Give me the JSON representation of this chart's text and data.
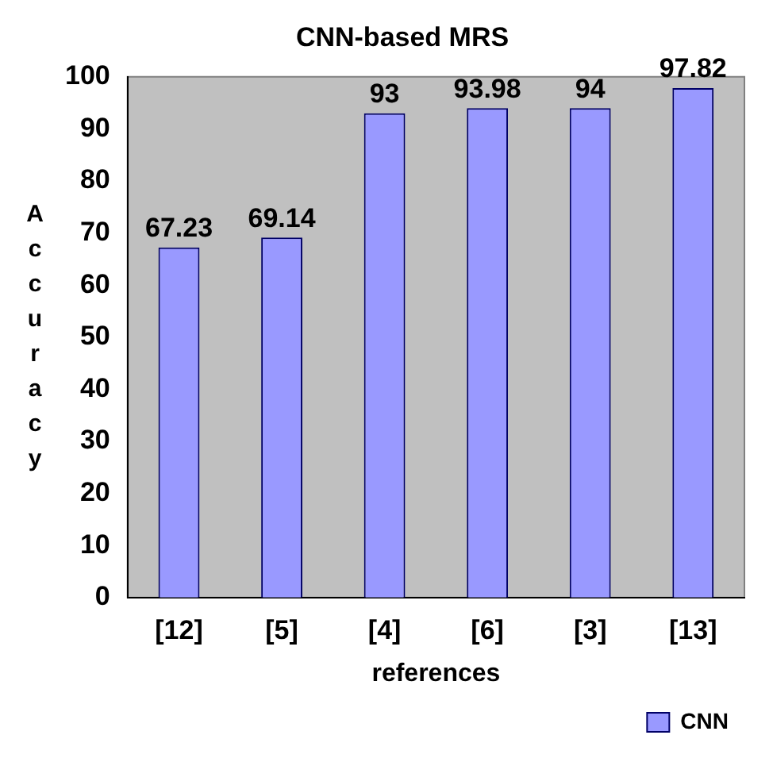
{
  "chart_data": {
    "type": "bar",
    "title": "CNN-based MRS",
    "xlabel": "references",
    "ylabel": "Accuracy",
    "categories": [
      "[12]",
      "[5]",
      "[4]",
      "[6]",
      "[3]",
      "[13]"
    ],
    "series": [
      {
        "name": "CNN",
        "color": "#9999ff",
        "values": [
          67.23,
          69.14,
          93,
          93.98,
          94,
          97.82
        ]
      }
    ],
    "ylim": [
      0,
      100
    ],
    "yticks": [
      0,
      10,
      20,
      30,
      40,
      50,
      60,
      70,
      80,
      90,
      100
    ],
    "grid": false,
    "legend": "bottom right",
    "data_labels": true
  }
}
